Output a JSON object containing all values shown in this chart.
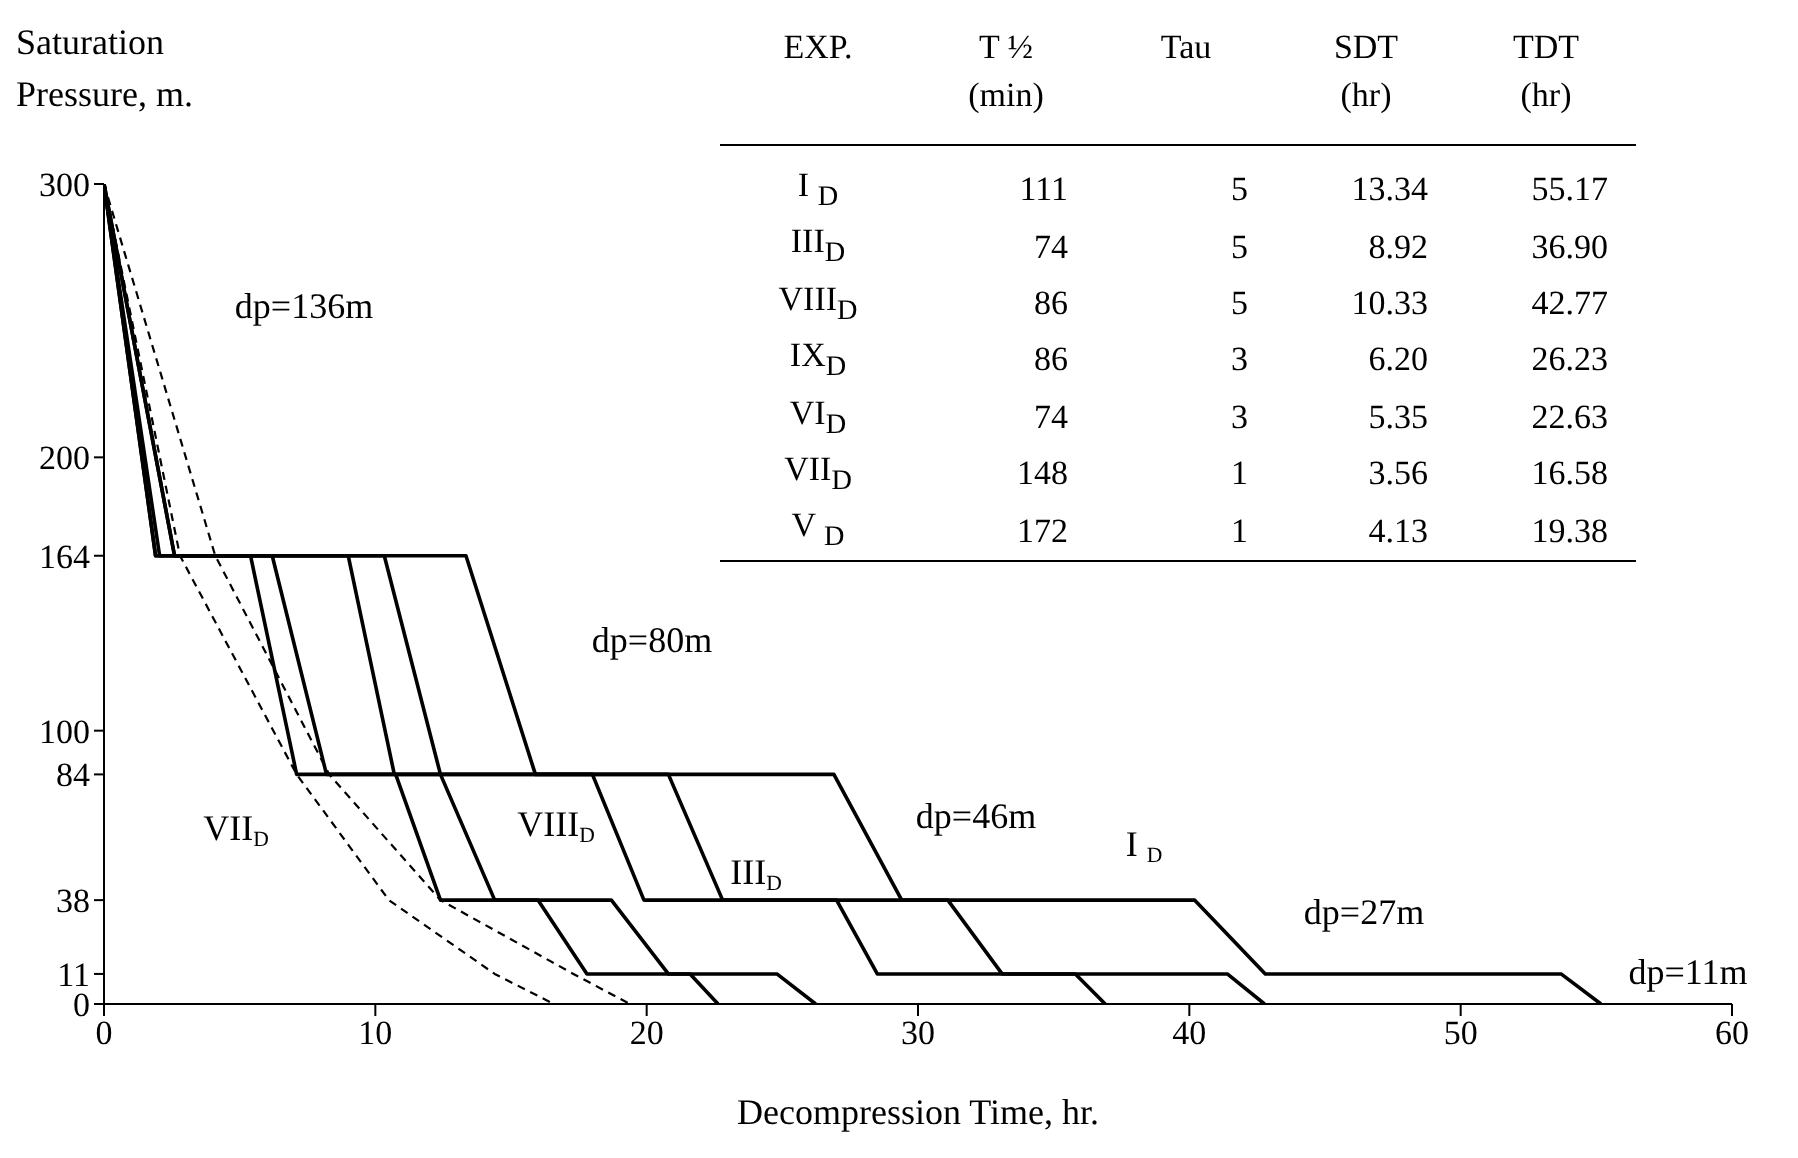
{
  "chart_data": {
    "type": "line",
    "ylabel": "Saturation Pressure, m.",
    "xlabel": "Decompression Time, hr.",
    "xlim": [
      0,
      60
    ],
    "xticks": [
      0,
      10,
      20,
      30,
      40,
      50,
      60
    ],
    "ylim": [
      0,
      300
    ],
    "yticks": [
      0,
      11,
      38,
      84,
      100,
      164,
      200,
      300
    ],
    "grid": false,
    "legend": false,
    "marker": "none",
    "series": [
      {
        "color": "#000000",
        "line_style": "solid",
        "x": [
          0,
          1.9,
          5.4,
          7.1,
          10.75,
          12.4,
          16.0,
          17.8,
          21.6,
          22.63
        ],
        "values": [
          300,
          164,
          164,
          84,
          84,
          38,
          38,
          11,
          11,
          0
        ]
      },
      {
        "color": "#000000",
        "line_style": "solid",
        "x": [
          0,
          2.05,
          6.2,
          8.2,
          12.4,
          14.4,
          18.7,
          20.8,
          24.8,
          26.23
        ],
        "values": [
          300,
          164,
          164,
          84,
          84,
          38,
          38,
          11,
          11,
          0
        ]
      },
      {
        "color": "#000000",
        "line_style": "solid",
        "x": [
          0,
          1.9,
          9.0,
          10.7,
          18.0,
          19.9,
          27.0,
          28.5,
          35.8,
          36.9
        ],
        "values": [
          300,
          164,
          164,
          84,
          84,
          38,
          38,
          11,
          11,
          0
        ]
      },
      {
        "color": "#000000",
        "line_style": "solid",
        "x": [
          0,
          2.6,
          10.33,
          12.4,
          20.8,
          22.8,
          31.1,
          33.1,
          41.4,
          42.77
        ],
        "values": [
          300,
          164,
          164,
          84,
          84,
          38,
          38,
          11,
          11,
          0
        ]
      },
      {
        "color": "#000000",
        "line_style": "solid",
        "x": [
          0,
          2.6,
          13.34,
          15.9,
          26.9,
          29.4,
          40.2,
          42.8,
          53.7,
          55.17
        ],
        "values": [
          300,
          164,
          164,
          84,
          84,
          38,
          38,
          11,
          11,
          0
        ]
      },
      {
        "color": "#000000",
        "line_style": "dashed",
        "x": [
          0,
          2.8,
          7.1,
          10.5,
          14.4,
          16.58
        ],
        "values": [
          300,
          164,
          84,
          38,
          11,
          0
        ]
      },
      {
        "color": "#000000",
        "line_style": "dashed",
        "x": [
          0,
          4.1,
          8.3,
          12.4,
          17.3,
          19.38
        ],
        "values": [
          300,
          164,
          84,
          38,
          11,
          0
        ]
      }
    ],
    "annotations": [
      "dp=136m",
      "dp=80m",
      "dp=46m",
      "dp=27m",
      "dp=11m",
      "VII$_{D}$",
      "VIII$_{D}$",
      "III$_{D}$",
      "I $_{D}$",
      "EXP.\tT ½\tTau\tSDT\tTDT",
      "\t(min)\t\t(hr)\t(hr)",
      "I $_{D}$\t111\t5\t13.34\t55.17",
      "III$_{D}$\t74\t5\t8.92\t36.90",
      "VIII$_{D}$\t86\t5\t10.33\t42.77",
      "IX$_{D}$\t86\t3\t6.20\t26.23",
      "VI$_{D}$\t74\t3\t5.35\t22.63",
      "VII$_{D}$\t148\t1\t3.56\t16.58",
      "V $_{D}$\t172\t1\t4.13\t19.38"
    ]
  }
}
